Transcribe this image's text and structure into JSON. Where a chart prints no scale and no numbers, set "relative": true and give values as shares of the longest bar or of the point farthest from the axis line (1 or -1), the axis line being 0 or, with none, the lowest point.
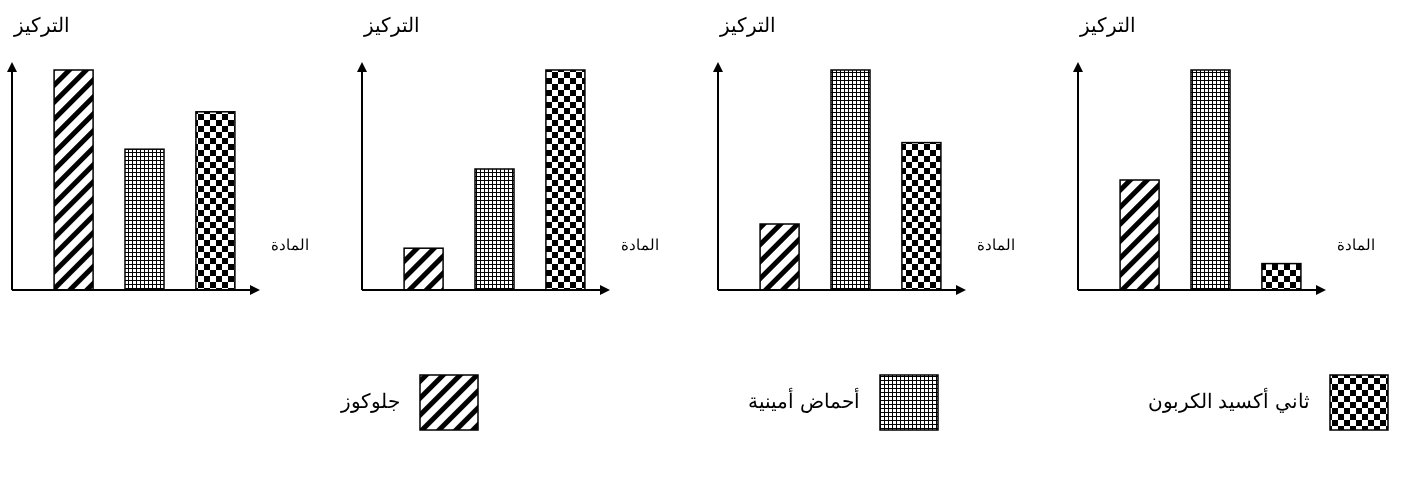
{
  "chart_data": [
    {
      "type": "bar",
      "relative": true,
      "ylabel": "التركيز",
      "xlabel": "المادة",
      "categories": [
        null,
        null,
        null
      ],
      "series": [
        {
          "colors": [
            "#000000",
            "#000000",
            "#000000"
          ],
          "values": [
            1,
            0.64,
            0.81
          ]
        }
      ]
    },
    {
      "type": "bar",
      "relative": true,
      "ylabel": "التركيز",
      "xlabel": "المادة",
      "categories": [
        null,
        null,
        null
      ],
      "series": [
        {
          "colors": [
            "#000000",
            "#000000",
            "#000000"
          ],
          "values": [
            0.19,
            0.55,
            1
          ]
        }
      ]
    },
    {
      "type": "bar",
      "relative": true,
      "ylabel": "التركيز",
      "xlabel": "المادة",
      "categories": [
        null,
        null,
        null
      ],
      "series": [
        {
          "colors": [
            "#000000",
            "#000000",
            "#000000"
          ],
          "values": [
            0.3,
            1,
            0.67
          ]
        }
      ]
    },
    {
      "type": "bar",
      "relative": true,
      "ylabel": "التركيز",
      "xlabel": "المادة",
      "categories": [
        null,
        null,
        null
      ],
      "series": [
        {
          "colors": [
            "#000000",
            "#000000",
            "#000000"
          ],
          "values": [
            0.5,
            1,
            0.12
          ]
        }
      ]
    },
    {
      "type": "other",
      "annotations": [
        "جلوكوز",
        "أحماض أمينية",
        "ثاني أكسيد الكربون"
      ]
    }
  ]
}
